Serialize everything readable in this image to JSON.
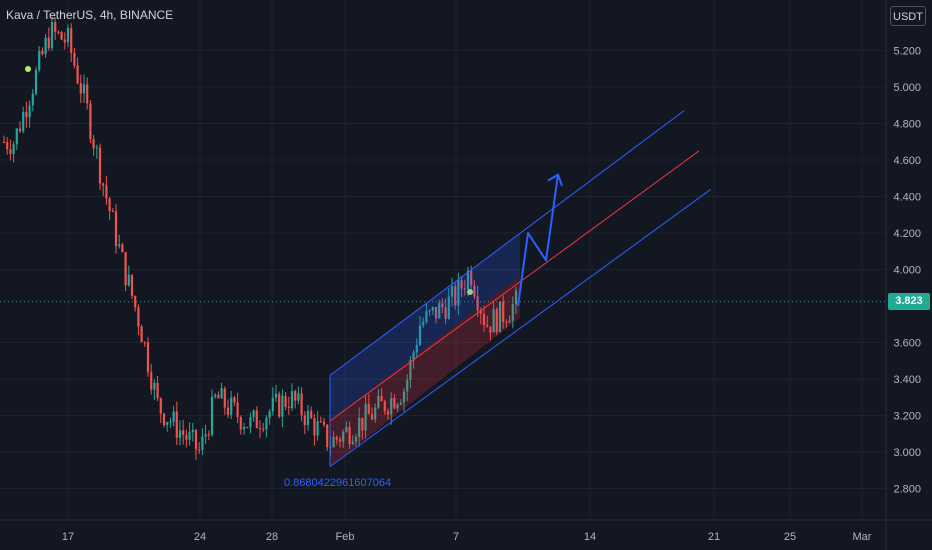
{
  "header": {
    "title": "Kava / TetherUS, 4h, BINANCE"
  },
  "price_axis": {
    "unit": "USDT",
    "last_price_label": "3.823"
  },
  "annotation": {
    "text": "0.8680422961607064"
  },
  "colors": {
    "background": "#131722",
    "up": "#26a69a",
    "down": "#ef5350",
    "channel_blue": "#2962ff",
    "channel_red": "#f23645",
    "arrow": "#2962ff",
    "dot": "#b2f35a"
  },
  "chart_data": {
    "type": "candlestick",
    "title": "Kava / TetherUS, 4h, BINANCE",
    "y_unit": "USDT",
    "yticks": [
      "5.200",
      "5.000",
      "4.800",
      "4.600",
      "4.400",
      "4.200",
      "4.000",
      "3.600",
      "3.400",
      "3.200",
      "3.000",
      "2.800"
    ],
    "xticks": [
      "17",
      "24",
      "28",
      "Feb",
      "7",
      "14",
      "21",
      "25",
      "Mar"
    ],
    "ylim": [
      2.7,
      5.4
    ],
    "last_price": 3.823,
    "candle_segments": [
      {
        "date": "Jan 13",
        "value": 4.7
      },
      {
        "date": "Jan 15",
        "value": 5.3
      },
      {
        "date": "Jan 17",
        "value": 5.25
      },
      {
        "date": "Jan 18",
        "value": 4.9
      },
      {
        "date": "Jan 19",
        "value": 4.45
      },
      {
        "date": "Jan 20",
        "value": 4.05
      },
      {
        "date": "Jan 21",
        "value": 3.7
      },
      {
        "date": "Jan 22",
        "value": 3.25
      },
      {
        "date": "Jan 24",
        "value": 3.0
      },
      {
        "date": "Jan 25",
        "value": 3.3
      },
      {
        "date": "Jan 27",
        "value": 3.15
      },
      {
        "date": "Jan 29",
        "value": 3.3
      },
      {
        "date": "Jan 30",
        "value": 3.05
      },
      {
        "date": "Feb 2",
        "value": 3.2
      },
      {
        "date": "Feb 4",
        "value": 3.35
      },
      {
        "date": "Feb 5",
        "value": 3.7
      },
      {
        "date": "Feb 7",
        "value": 3.85
      },
      {
        "date": "Feb 8",
        "value": 4.0
      },
      {
        "date": "Feb 9",
        "value": 3.7
      },
      {
        "date": "Feb 10",
        "value": 3.75
      },
      {
        "date": "Feb 11",
        "value": 3.823
      }
    ],
    "channel": {
      "start": {
        "date": "Jan 30"
      },
      "end": {
        "date": "Feb 19"
      },
      "upper": [
        3.42,
        4.87
      ],
      "middle": [
        3.17,
        4.65
      ],
      "lower": [
        2.92,
        4.44
      ]
    },
    "projection_arrow": [
      {
        "date": "Feb 11",
        "value": 3.8
      },
      {
        "date": "Feb 11.5",
        "value": 4.2
      },
      {
        "date": "Feb 12",
        "value": 4.05
      },
      {
        "date": "Feb 12.7",
        "value": 4.52
      }
    ]
  }
}
